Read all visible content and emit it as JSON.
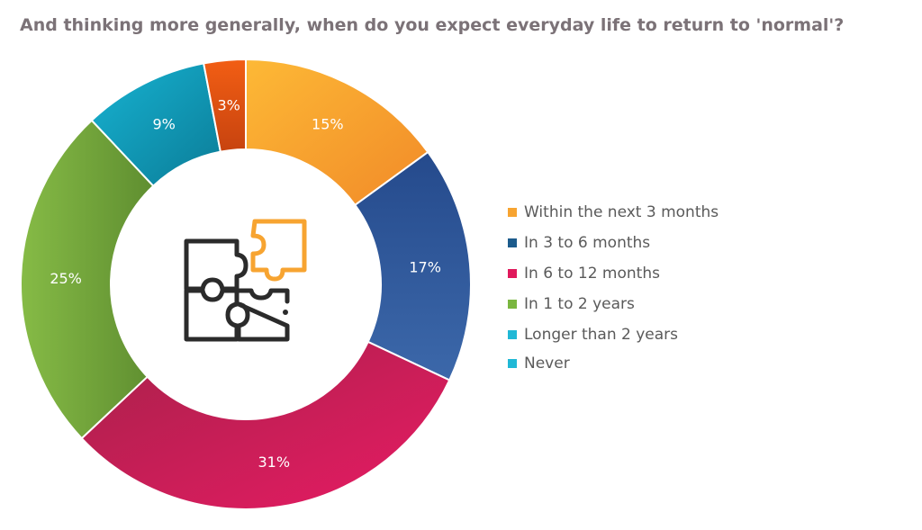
{
  "chart_data": {
    "type": "pie",
    "subtype": "donut",
    "title": "And thinking more generally, when do you expect everyday life to return to 'normal'?",
    "categories": [
      "Within the next 3 months",
      "In 3 to 6 months",
      "In 6 to 12 months",
      "In 1 to 2 years",
      "Longer than 2 years",
      "Never"
    ],
    "values": [
      15,
      17,
      31,
      25,
      9,
      3
    ],
    "value_labels": [
      "15%",
      "17%",
      "31%",
      "25%",
      "9%",
      "3%"
    ],
    "colors": [
      "#f7a431",
      "#2f5597",
      "#d81b5e",
      "#7aad3f",
      "#17b0cf",
      "#f05a14"
    ],
    "legend_colors": [
      "#f7a431",
      "#1c5b8c",
      "#e0195c",
      "#7ab63f",
      "#20b8d6",
      "#20b8d6"
    ],
    "legend_position": "right",
    "center_icon": "puzzle-icon"
  }
}
